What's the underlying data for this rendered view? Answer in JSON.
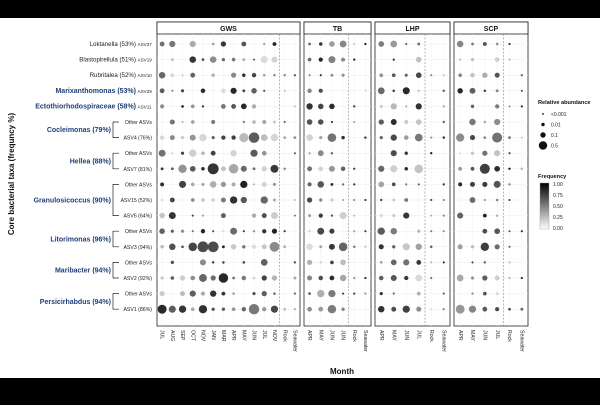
{
  "chart_data": {
    "type": "scatter",
    "xlabel": "Month",
    "ylabel": "Core bacterial taxa (frequncy %)",
    "facets": [
      {
        "title": "GWS",
        "months": [
          "JUL",
          "AUG",
          "SEP",
          "OCT",
          "NOV",
          "JAN",
          "MAR",
          "APR",
          "MAY",
          "JUN",
          "JUL",
          "NOV"
        ],
        "extra": [
          "Rock",
          "Seawater"
        ]
      },
      {
        "title": "TB",
        "months": [
          "APR",
          "MAY",
          "JUN",
          "JUN"
        ],
        "extra": [
          "Rock",
          "Seawater"
        ]
      },
      {
        "title": "LHP",
        "months": [
          "APR",
          "MAY",
          "JUN",
          "JUL"
        ],
        "extra": [
          "Rock",
          "Seawater"
        ]
      },
      {
        "title": "SCP",
        "months": [
          "APR",
          "MAY",
          "JUN",
          "JUL"
        ],
        "extra": [
          "Rock",
          "Seawater"
        ]
      }
    ],
    "rows": [
      {
        "label": "Loktanella (53%)",
        "asv": "ASV27",
        "bold": false
      },
      {
        "label": "Blastopirellula (51%)",
        "asv": "ASV19",
        "bold": false
      },
      {
        "label": "Rubritalea (52%)",
        "asv": "ASV10",
        "bold": false
      },
      {
        "label": "Marixanthomonas (53%)",
        "asv": "ASV29",
        "bold": true
      },
      {
        "label": "Ectothiorhodospiraceae (58%)",
        "asv": "ASV11",
        "bold": true
      },
      {
        "label": "",
        "asv": "Other ASVs",
        "bold": false
      },
      {
        "label": "",
        "asv": "ASV4 (76%)",
        "bold": false
      },
      {
        "label": "",
        "asv": "Other ASVs",
        "bold": false
      },
      {
        "label": "",
        "asv": "ASV7 (81%)",
        "bold": false
      },
      {
        "label": "",
        "asv": "Other ASVs",
        "bold": false
      },
      {
        "label": "",
        "asv": "ASV15 (52%)",
        "bold": false
      },
      {
        "label": "",
        "asv": "ASV6 (64%)",
        "bold": false
      },
      {
        "label": "",
        "asv": "Other ASVs",
        "bold": false
      },
      {
        "label": "",
        "asv": "ASV3 (94%)",
        "bold": false
      },
      {
        "label": "",
        "asv": "Other ASVs",
        "bold": false
      },
      {
        "label": "",
        "asv": "ASV2 (92%)",
        "bold": false
      },
      {
        "label": "",
        "asv": "Other ASVs",
        "bold": false
      },
      {
        "label": "",
        "asv": "ASV1 (86%)",
        "bold": false
      }
    ],
    "groups": [
      {
        "label": "Cocleimonas (79%)",
        "rows": [
          5,
          6
        ]
      },
      {
        "label": "Hellea (88%)",
        "rows": [
          7,
          8
        ]
      },
      {
        "label": "Granulosicoccus (90%)",
        "rows": [
          9,
          10,
          11
        ]
      },
      {
        "label": "Litorimonas (96%)",
        "rows": [
          12,
          13
        ]
      },
      {
        "label": "Maribacter (94%)",
        "rows": [
          14,
          15
        ]
      },
      {
        "label": "Persicirhabdus (94%)",
        "rows": [
          16,
          17
        ]
      }
    ],
    "legend": {
      "size_title": "Relative abundance",
      "size_labels": [
        "<0.001",
        "0.01",
        "0.1",
        "0.5"
      ],
      "freq_title": "Frequency",
      "freq_ticks": [
        "1.00",
        "0.75",
        "0.50",
        "0.25",
        "0.00"
      ]
    },
    "grid": true,
    "point_note": "approximate: rows are taxa/ASVs, columns are sampling months; size = relative abundance, shade = frequency"
  }
}
